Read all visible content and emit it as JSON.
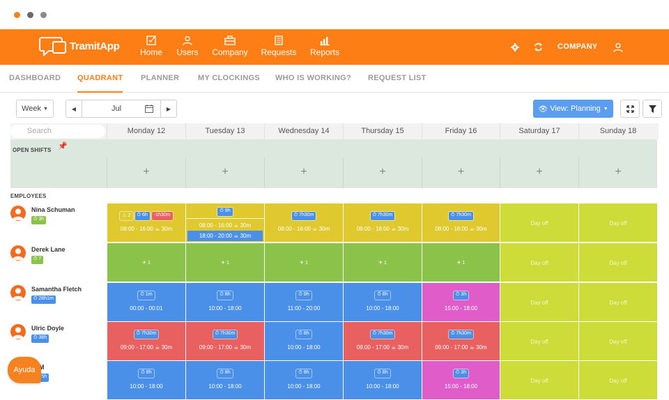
{
  "window": {
    "dots": [
      "#f6821f",
      "#6a6a6a",
      "#8a8a8a"
    ]
  },
  "app": {
    "name": "TramitApp",
    "brand_color": "#fd7e14"
  },
  "nav": {
    "items": [
      {
        "label": "Home",
        "icon": "checkbox-icon"
      },
      {
        "label": "Users",
        "icon": "user-icon"
      },
      {
        "label": "Company",
        "icon": "briefcase-icon"
      },
      {
        "label": "Requests",
        "icon": "document-icon"
      },
      {
        "label": "Reports",
        "icon": "bar-chart-icon"
      }
    ],
    "company_label": "COMPANY"
  },
  "tabs": [
    "DASHBOARD",
    "QUADRANT",
    "PLANNER",
    "MY CLOCKINGS",
    "WHO IS WORKING?",
    "REQUEST LIST"
  ],
  "active_tab": "QUADRANT",
  "toolbar": {
    "range_select": "Week",
    "month": "Jul",
    "view_button": "View: Planning"
  },
  "grid": {
    "search_placeholder": "Search",
    "days": [
      "Monday 12",
      "Tuesday 13",
      "Wednesday 14",
      "Thursday 15",
      "Friday 16",
      "Saturday 17",
      "Sunday 18"
    ],
    "open_shifts_label": "OPEN SHIFTS",
    "employees_label": "EMPLOYEES",
    "plus": "+",
    "day_off": "Day off"
  },
  "colors": {
    "yellow": "#e0c92e",
    "green": "#8bc34a",
    "blue": "#4a90e8",
    "red": "#e8605f",
    "pink": "#e05dc9",
    "lime": "#cddc39"
  },
  "employees": [
    {
      "name": "Nina Schuman",
      "badge": "3h",
      "badge_color": "#8bc34a",
      "cells": [
        {
          "color": "yellow",
          "tags": [
            {
              "t": "⚠ 2",
              "c": "#e0c92e"
            },
            {
              "t": "⏱ 6h",
              "c": "#4a90e8"
            },
            {
              "t": "-1h30m",
              "c": "#e8605f"
            }
          ],
          "time": "08:00 - 16:00 ☕ 30m"
        },
        {
          "color": "yellow",
          "tags": [
            {
              "t": "⏱ 9h",
              "c": "#4a90e8"
            }
          ],
          "time": "08:00 - 16:00 ☕ 30m",
          "extra": "18:00 - 20:00 ☕ 30m"
        },
        {
          "color": "yellow",
          "tags": [
            {
              "t": "⏱ 7h30m",
              "c": "#4a90e8"
            }
          ],
          "time": "08:00 - 16:00 ☕ 30m"
        },
        {
          "color": "yellow",
          "tags": [
            {
              "t": "⏱ 7h30m",
              "c": "#4a90e8"
            }
          ],
          "time": "08:00 - 16:00 ☕ 30m"
        },
        {
          "color": "yellow",
          "tags": [
            {
              "t": "⏱ 7h30m",
              "c": "#4a90e8"
            }
          ],
          "time": "08:00 - 16:00 ☕ 30m"
        },
        {
          "color": "lime",
          "dayoff": true
        },
        {
          "color": "lime",
          "dayoff": true
        }
      ]
    },
    {
      "name": "Derek Lane",
      "badge": "7",
      "badge_color": "#8bc34a",
      "cells": [
        {
          "color": "green",
          "flight": "✈ 1"
        },
        {
          "color": "green",
          "flight": "✈ 1"
        },
        {
          "color": "green",
          "flight": "✈ 1"
        },
        {
          "color": "green",
          "flight": "✈ 1"
        },
        {
          "color": "green",
          "flight": "✈ 1"
        },
        {
          "color": "lime",
          "dayoff": true
        },
        {
          "color": "lime",
          "dayoff": true
        }
      ]
    },
    {
      "name": "Samantha Fletch",
      "badge": "28h1m",
      "badge_color": "#4a90e8",
      "cells": [
        {
          "color": "blue",
          "tags": [
            {
              "t": "⏱ 1m",
              "c": "#4a90e8"
            }
          ],
          "time": "00:00 - 00:01"
        },
        {
          "color": "blue",
          "tags": [
            {
              "t": "⏱ 8h",
              "c": "#4a90e8"
            }
          ],
          "time": "10:00 - 18:00"
        },
        {
          "color": "blue",
          "tags": [
            {
              "t": "⏱ 9h",
              "c": "#4a90e8"
            }
          ],
          "time": "11:00 - 20:00"
        },
        {
          "color": "blue",
          "tags": [
            {
              "t": "⏱ 8h",
              "c": "#4a90e8"
            }
          ],
          "time": "10:00 - 18:00"
        },
        {
          "color": "pink",
          "tags": [
            {
              "t": "⏱ 3h",
              "c": "#4a90e8"
            }
          ],
          "time": "15:00 - 18:00"
        },
        {
          "color": "lime",
          "dayoff": true
        },
        {
          "color": "lime",
          "dayoff": true
        }
      ]
    },
    {
      "name": "Ulric Doyle",
      "badge": "38h",
      "badge_color": "#4a90e8",
      "cells": [
        {
          "color": "red",
          "tags": [
            {
              "t": "⏱ 7h30m",
              "c": "#4a90e8"
            }
          ],
          "time": "09:00 - 17:00 ☕ 30m"
        },
        {
          "color": "red",
          "tags": [
            {
              "t": "⏱ 7h30m",
              "c": "#4a90e8"
            }
          ],
          "time": "09:00 - 17:00 ☕ 30m"
        },
        {
          "color": "blue",
          "tags": [
            {
              "t": "⏱ 8h",
              "c": "#4a90e8"
            }
          ],
          "time": "10:00 - 18:00"
        },
        {
          "color": "red",
          "tags": [
            {
              "t": "⏱ 7h30m",
              "c": "#4a90e8"
            }
          ],
          "time": "09:00 - 17:00 ☕ 30m"
        },
        {
          "color": "red",
          "tags": [
            {
              "t": "⏱ 7h30m",
              "c": "#4a90e8"
            }
          ],
          "time": "09:00 - 17:00 ☕ 30m"
        },
        {
          "color": "lime",
          "dayoff": true
        },
        {
          "color": "lime",
          "dayoff": true
        }
      ]
    },
    {
      "name": "ra M",
      "badge": "35h",
      "badge_color": "#4a90e8",
      "cells": [
        {
          "color": "blue",
          "tags": [
            {
              "t": "⏱ 8h",
              "c": "#4a90e8"
            }
          ],
          "time": "10:00 - 18:00"
        },
        {
          "color": "blue",
          "tags": [
            {
              "t": "⏱ 8h",
              "c": "#4a90e8"
            }
          ],
          "time": "10:00 - 18:00"
        },
        {
          "color": "blue",
          "tags": [
            {
              "t": "⏱ 8h",
              "c": "#4a90e8"
            }
          ],
          "time": "10:00 - 18:00"
        },
        {
          "color": "blue",
          "tags": [
            {
              "t": "⏱ 8h",
              "c": "#4a90e8"
            }
          ],
          "time": "10:00 - 18:00"
        },
        {
          "color": "pink",
          "tags": [
            {
              "t": "⏱ 3h",
              "c": "#4a90e8"
            }
          ],
          "time": "15:00 - 18:00"
        },
        {
          "color": "lime",
          "dayoff": true
        },
        {
          "color": "lime",
          "dayoff": true
        }
      ]
    }
  ],
  "help_button": "Ayuda"
}
